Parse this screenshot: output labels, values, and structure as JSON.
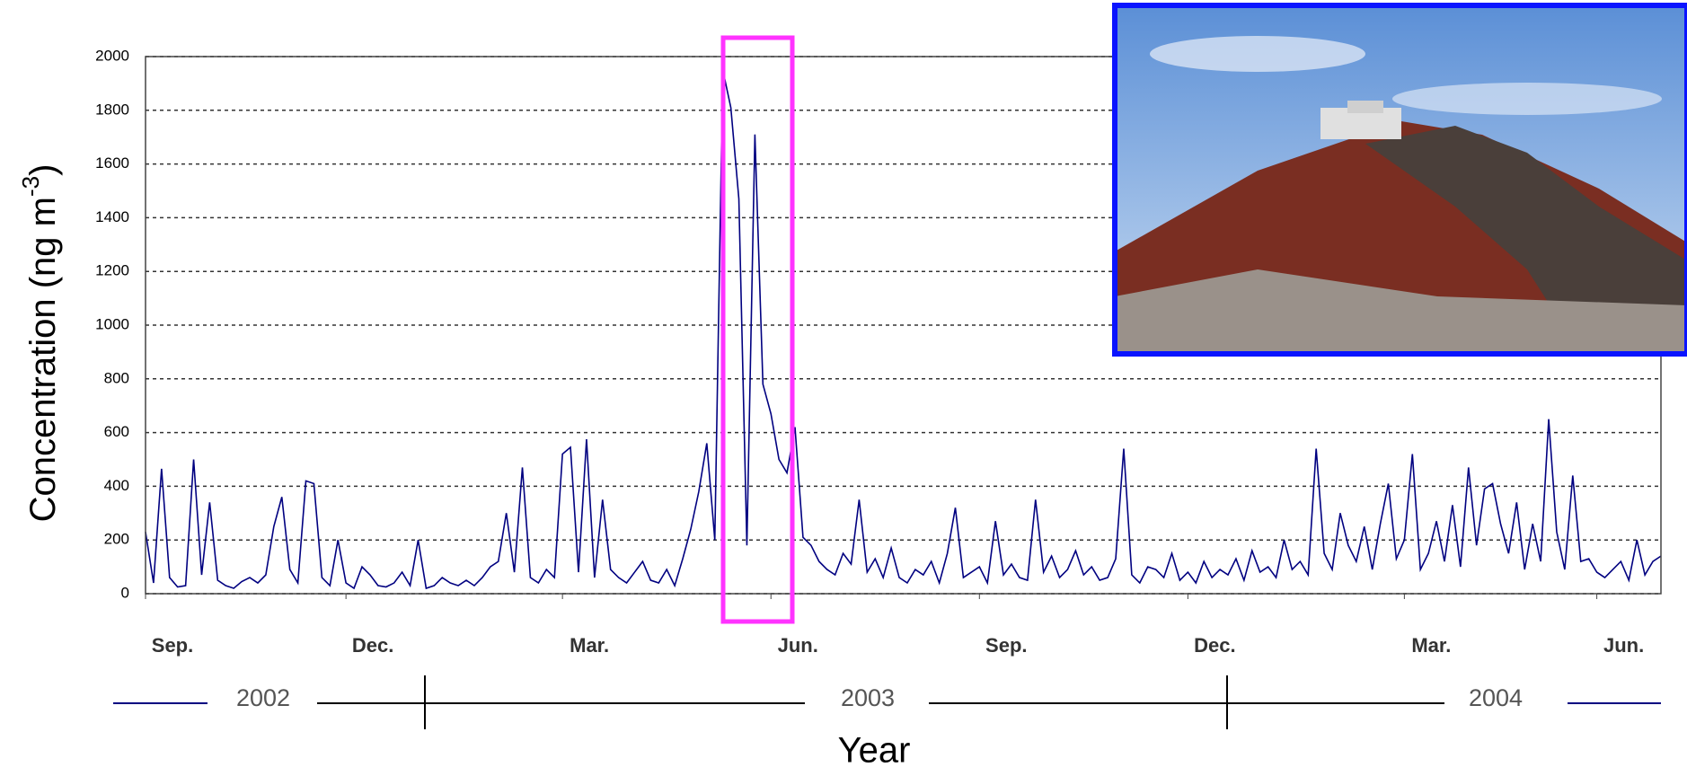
{
  "chart_data": {
    "type": "line",
    "ylabel": "Concentration (ng m",
    "ylabel_sup": "-3",
    "ylabel_end": ")",
    "xlabel": "Year",
    "years": [
      "2002",
      "2003",
      "2004"
    ],
    "xlim": [
      0,
      189
    ],
    "xticks": [
      {
        "value": 0,
        "label": "Sep."
      },
      {
        "value": 25,
        "label": "Dec."
      },
      {
        "value": 52,
        "label": "Mar."
      },
      {
        "value": 78,
        "label": "Jun."
      },
      {
        "value": 104,
        "label": "Sep."
      },
      {
        "value": 130,
        "label": "Dec."
      },
      {
        "value": 157,
        "label": "Mar."
      },
      {
        "value": 181,
        "label": "Jun."
      }
    ],
    "ylim": [
      0,
      2000
    ],
    "yticks": [
      0,
      200,
      400,
      600,
      800,
      1000,
      1200,
      1400,
      1600,
      1800,
      2000
    ],
    "grid": true,
    "color": "#000080",
    "values": [
      230,
      40,
      465,
      60,
      25,
      30,
      500,
      70,
      340,
      50,
      30,
      20,
      45,
      60,
      40,
      70,
      250,
      360,
      90,
      40,
      420,
      410,
      60,
      30,
      200,
      40,
      20,
      100,
      70,
      30,
      25,
      40,
      80,
      30,
      200,
      20,
      30,
      60,
      40,
      30,
      50,
      30,
      60,
      100,
      120,
      300,
      80,
      470,
      60,
      40,
      90,
      60,
      520,
      545,
      80,
      575,
      60,
      350,
      90,
      60,
      40,
      80,
      120,
      50,
      40,
      90,
      30,
      130,
      240,
      380,
      560,
      200,
      1950,
      1810,
      1470,
      180,
      1710,
      780,
      670,
      500,
      450,
      620,
      210,
      180,
      120,
      90,
      70,
      150,
      110,
      350,
      80,
      130,
      60,
      170,
      60,
      40,
      90,
      70,
      120,
      40,
      150,
      320,
      60,
      80,
      100,
      40,
      270,
      70,
      110,
      60,
      50,
      350,
      80,
      140,
      60,
      90,
      160,
      70,
      100,
      50,
      60,
      130,
      540,
      70,
      40,
      100,
      90,
      60,
      150,
      50,
      80,
      40,
      120,
      60,
      90,
      70,
      130,
      50,
      160,
      80,
      100,
      60,
      200,
      90,
      120,
      70,
      540,
      150,
      90,
      300,
      180,
      120,
      250,
      90,
      260,
      410,
      130,
      200,
      520,
      90,
      150,
      270,
      120,
      330,
      100,
      470,
      180,
      390,
      410,
      260,
      150,
      340,
      90,
      260,
      120,
      650,
      230,
      90,
      440,
      120,
      130,
      80,
      60,
      90,
      120,
      50,
      200,
      70,
      120,
      140
    ]
  }
}
